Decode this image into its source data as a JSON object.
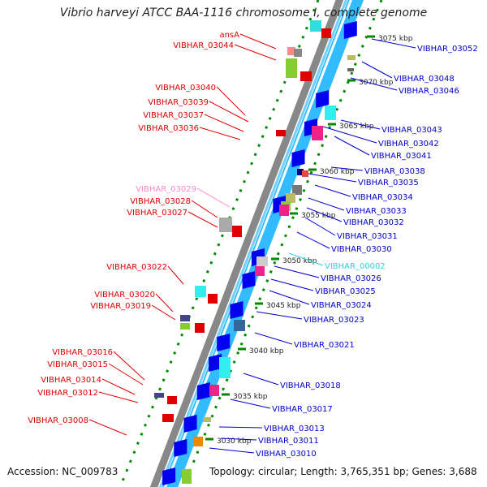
{
  "title": "Vibrio harveyi ATCC BAA-1116 chromosome I, complete genome",
  "footer": {
    "accession": "Accession: NC_009783",
    "topology": "Topology: circular; Length: 3,765,351 bp; Genes: 3,688"
  },
  "colors": {
    "left_labels": "#e00000",
    "right_labels": "#0000cc",
    "pseudo_left": "#ff88cc",
    "special_right": "#33ccdd",
    "track_outer": "#33bbff",
    "track_inner": "#0000ee",
    "axis": "#888888",
    "tick_major": "#008800"
  },
  "kbp_ticks": [
    "3075 kbp",
    "3070 kbp",
    "3065 kbp",
    "3060 kbp",
    "3055 kbp",
    "3050 kbp",
    "3045 kbp",
    "3040 kbp",
    "3035 kbp",
    "3030 kbp"
  ],
  "left_labels": [
    {
      "text": "ansA"
    },
    {
      "text": "VIBHAR_03044"
    },
    {
      "text": "VIBHAR_03040"
    },
    {
      "text": "VIBHAR_03039"
    },
    {
      "text": "VIBHAR_03037"
    },
    {
      "text": "VIBHAR_03036"
    },
    {
      "text": "VIBHAR_03029"
    },
    {
      "text": "VIBHAR_03028"
    },
    {
      "text": "VIBHAR_03027"
    },
    {
      "text": "VIBHAR_03022"
    },
    {
      "text": "VIBHAR_03020"
    },
    {
      "text": "VIBHAR_03019"
    },
    {
      "text": "VIBHAR_03016"
    },
    {
      "text": "VIBHAR_03015"
    },
    {
      "text": "VIBHAR_03014"
    },
    {
      "text": "VIBHAR_03012"
    },
    {
      "text": "VIBHAR_03008"
    }
  ],
  "right_labels": [
    {
      "text": "VIBHAR_03052"
    },
    {
      "text": "VIBHAR_03048"
    },
    {
      "text": "VIBHAR_03046"
    },
    {
      "text": "VIBHAR_03043"
    },
    {
      "text": "VIBHAR_03042"
    },
    {
      "text": "VIBHAR_03041"
    },
    {
      "text": "VIBHAR_03038"
    },
    {
      "text": "VIBHAR_03035"
    },
    {
      "text": "VIBHAR_03034"
    },
    {
      "text": "VIBHAR_03033"
    },
    {
      "text": "VIBHAR_03032"
    },
    {
      "text": "VIBHAR_03031"
    },
    {
      "text": "VIBHAR_03030"
    },
    {
      "text": "VIBHAR_00002"
    },
    {
      "text": "VIBHAR_03026"
    },
    {
      "text": "VIBHAR_03025"
    },
    {
      "text": "VIBHAR_03024"
    },
    {
      "text": "VIBHAR_03023"
    },
    {
      "text": "VIBHAR_03021"
    },
    {
      "text": "VIBHAR_03018"
    },
    {
      "text": "VIBHAR_03017"
    },
    {
      "text": "VIBHAR_03013"
    },
    {
      "text": "VIBHAR_03011"
    },
    {
      "text": "VIBHAR_03010"
    }
  ]
}
